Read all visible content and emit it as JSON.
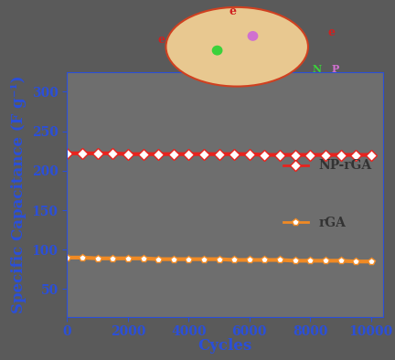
{
  "chart_data": {
    "type": "line",
    "x_label": "Cycles",
    "y_label": "Specific Capacitance (F g⁻¹)",
    "x": [
      0,
      500,
      1000,
      1500,
      2000,
      2500,
      3000,
      3500,
      4000,
      4500,
      5000,
      5500,
      6000,
      6500,
      7000,
      7500,
      8000,
      8500,
      9000,
      9500,
      10000
    ],
    "series": [
      {
        "name": "NP-rGA",
        "color": "#e8231e",
        "marker": "diamond",
        "values": [
          222,
          222,
          222,
          222,
          221,
          221,
          221,
          221,
          221,
          221,
          221,
          221,
          221,
          220,
          220,
          220,
          220,
          220,
          220,
          220,
          220
        ]
      },
      {
        "name": "rGA",
        "color": "#f08a24",
        "marker": "pentagon",
        "values": [
          90,
          90,
          89,
          89,
          89,
          89,
          88,
          88,
          88,
          88,
          88,
          87,
          87,
          87,
          87,
          86,
          86,
          86,
          86,
          85,
          85
        ]
      }
    ],
    "xlim": [
      0,
      10400
    ],
    "xticks": [
      0,
      2000,
      4000,
      6000,
      8000,
      10000
    ],
    "ylim": [
      15,
      325
    ],
    "yticks": [
      50,
      100,
      150,
      200,
      250,
      300
    ],
    "legend": "center right",
    "annotations": [
      "N",
      "P",
      "e"
    ]
  }
}
